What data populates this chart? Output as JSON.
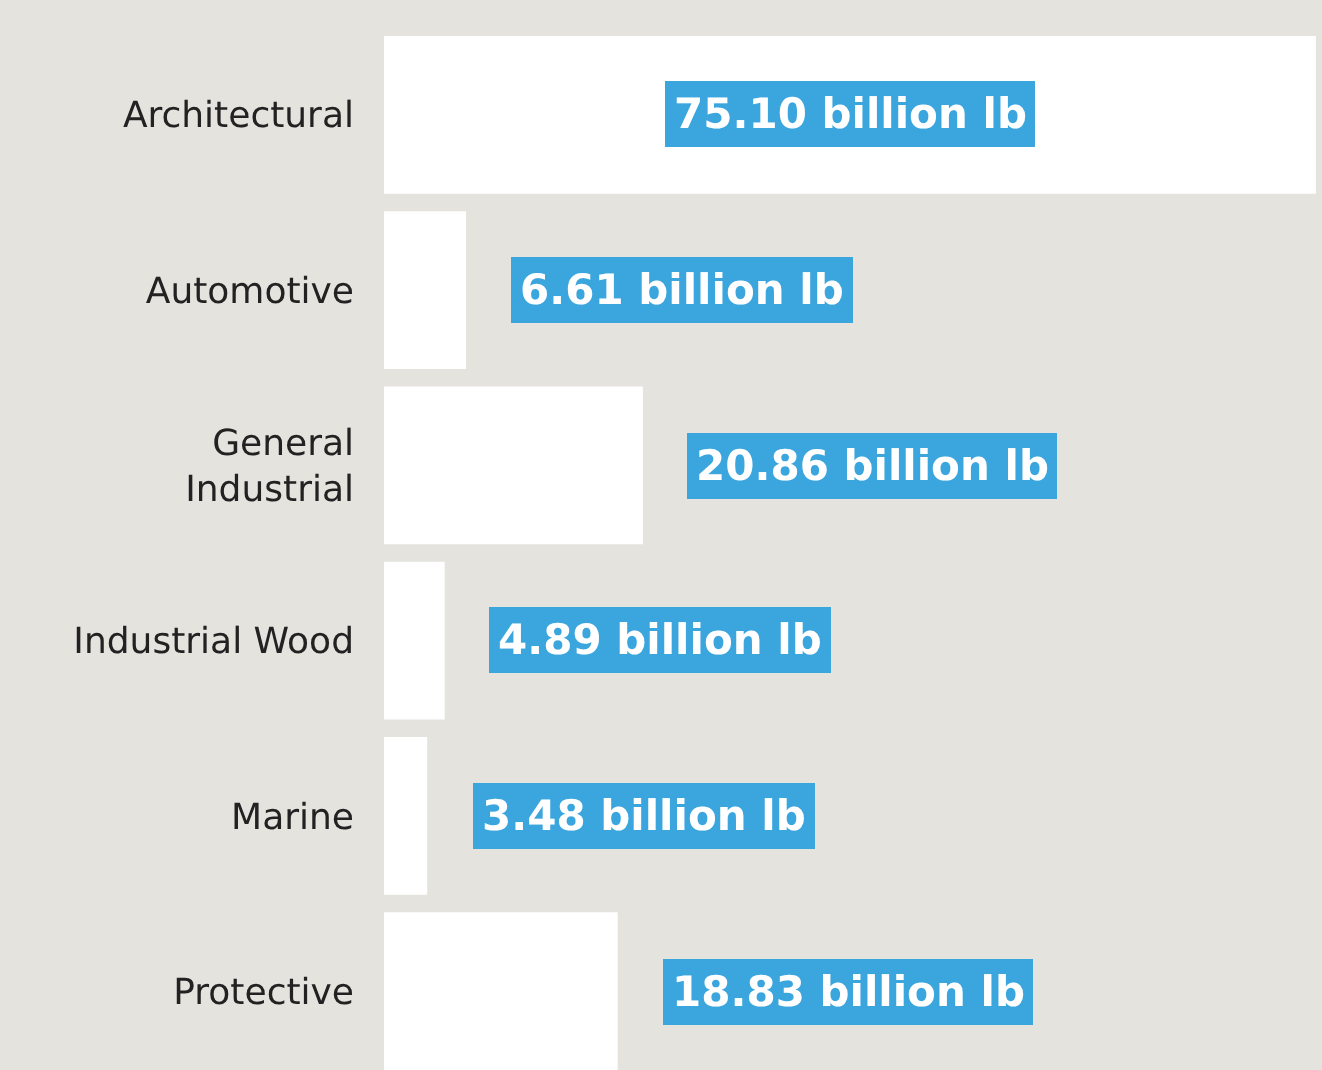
{
  "chart_data": {
    "type": "bar",
    "orientation": "horizontal",
    "categories": [
      "Architectural",
      "Automotive",
      "General Industrial",
      "Industrial Wood",
      "Marine",
      "Protective"
    ],
    "values": [
      75.1,
      6.61,
      20.86,
      4.89,
      3.48,
      18.83
    ],
    "value_labels": [
      "75.10 billion lb",
      "6.61 billion lb",
      "20.86 billion lb",
      "4.89 billion lb",
      "3.48 billion lb",
      "18.83 billion lb"
    ],
    "color": "#ffffff",
    "tick_labels": "y",
    "grid": false,
    "legend": false
  }
}
